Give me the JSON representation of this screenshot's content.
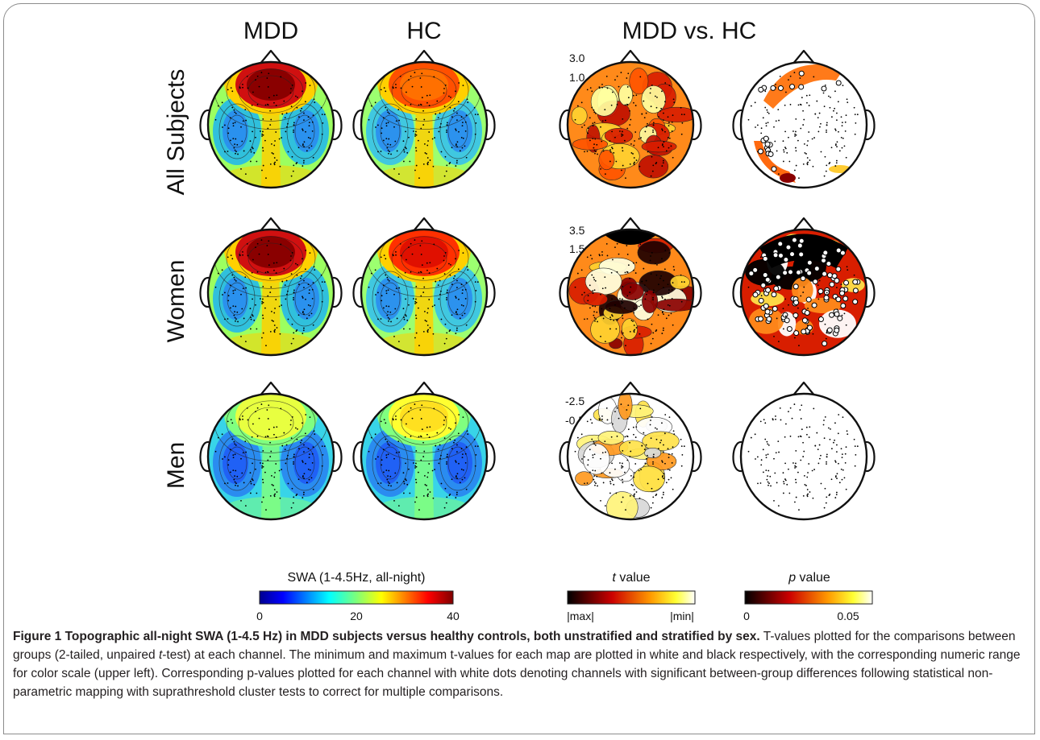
{
  "figure": {
    "column_headers": [
      "MDD",
      "HC",
      "MDD vs. HC"
    ],
    "rows": [
      {
        "label": "All Subjects",
        "t_range": [
          "3.0",
          "1.0"
        ]
      },
      {
        "label": "Women",
        "t_range": [
          "3.5",
          "1.5"
        ]
      },
      {
        "label": "Men",
        "t_range": [
          "-2.5",
          "-0.5"
        ]
      }
    ],
    "colorbars": {
      "swa": {
        "title": "SWA (1-4.5Hz, all-night)",
        "ticks": [
          "0",
          "20",
          "40"
        ]
      },
      "t": {
        "title_italic": "t",
        "title_rest": " value",
        "ticks": [
          "|max|",
          "|min|"
        ]
      },
      "p": {
        "title_italic": "p",
        "title_rest": " value",
        "ticks": [
          "0",
          "0.05"
        ]
      }
    },
    "colors": {
      "frame": "#8c8c8c",
      "dot": "#000000",
      "sig_dot": "#ffffff"
    }
  },
  "caption": {
    "title": "Figure 1 Topographic all-night SWA (1-4.5 Hz) in MDD subjects versus healthy controls, both unstratified and stratified by sex.",
    "body_1": " T-values plotted for the comparisons between groups (2-tailed, unpaired ",
    "body_italic": "t",
    "body_2": "-test) at each channel. The minimum and maximum t-values for each map are plotted in white and black respectively, with the corresponding numeric range for color scale (upper left). Corresponding p-values plotted for each channel with white dots denoting channels with significant between-group differences following statistical non-parametric mapping with suprathreshold cluster tests to correct for multiple comparisons."
  }
}
